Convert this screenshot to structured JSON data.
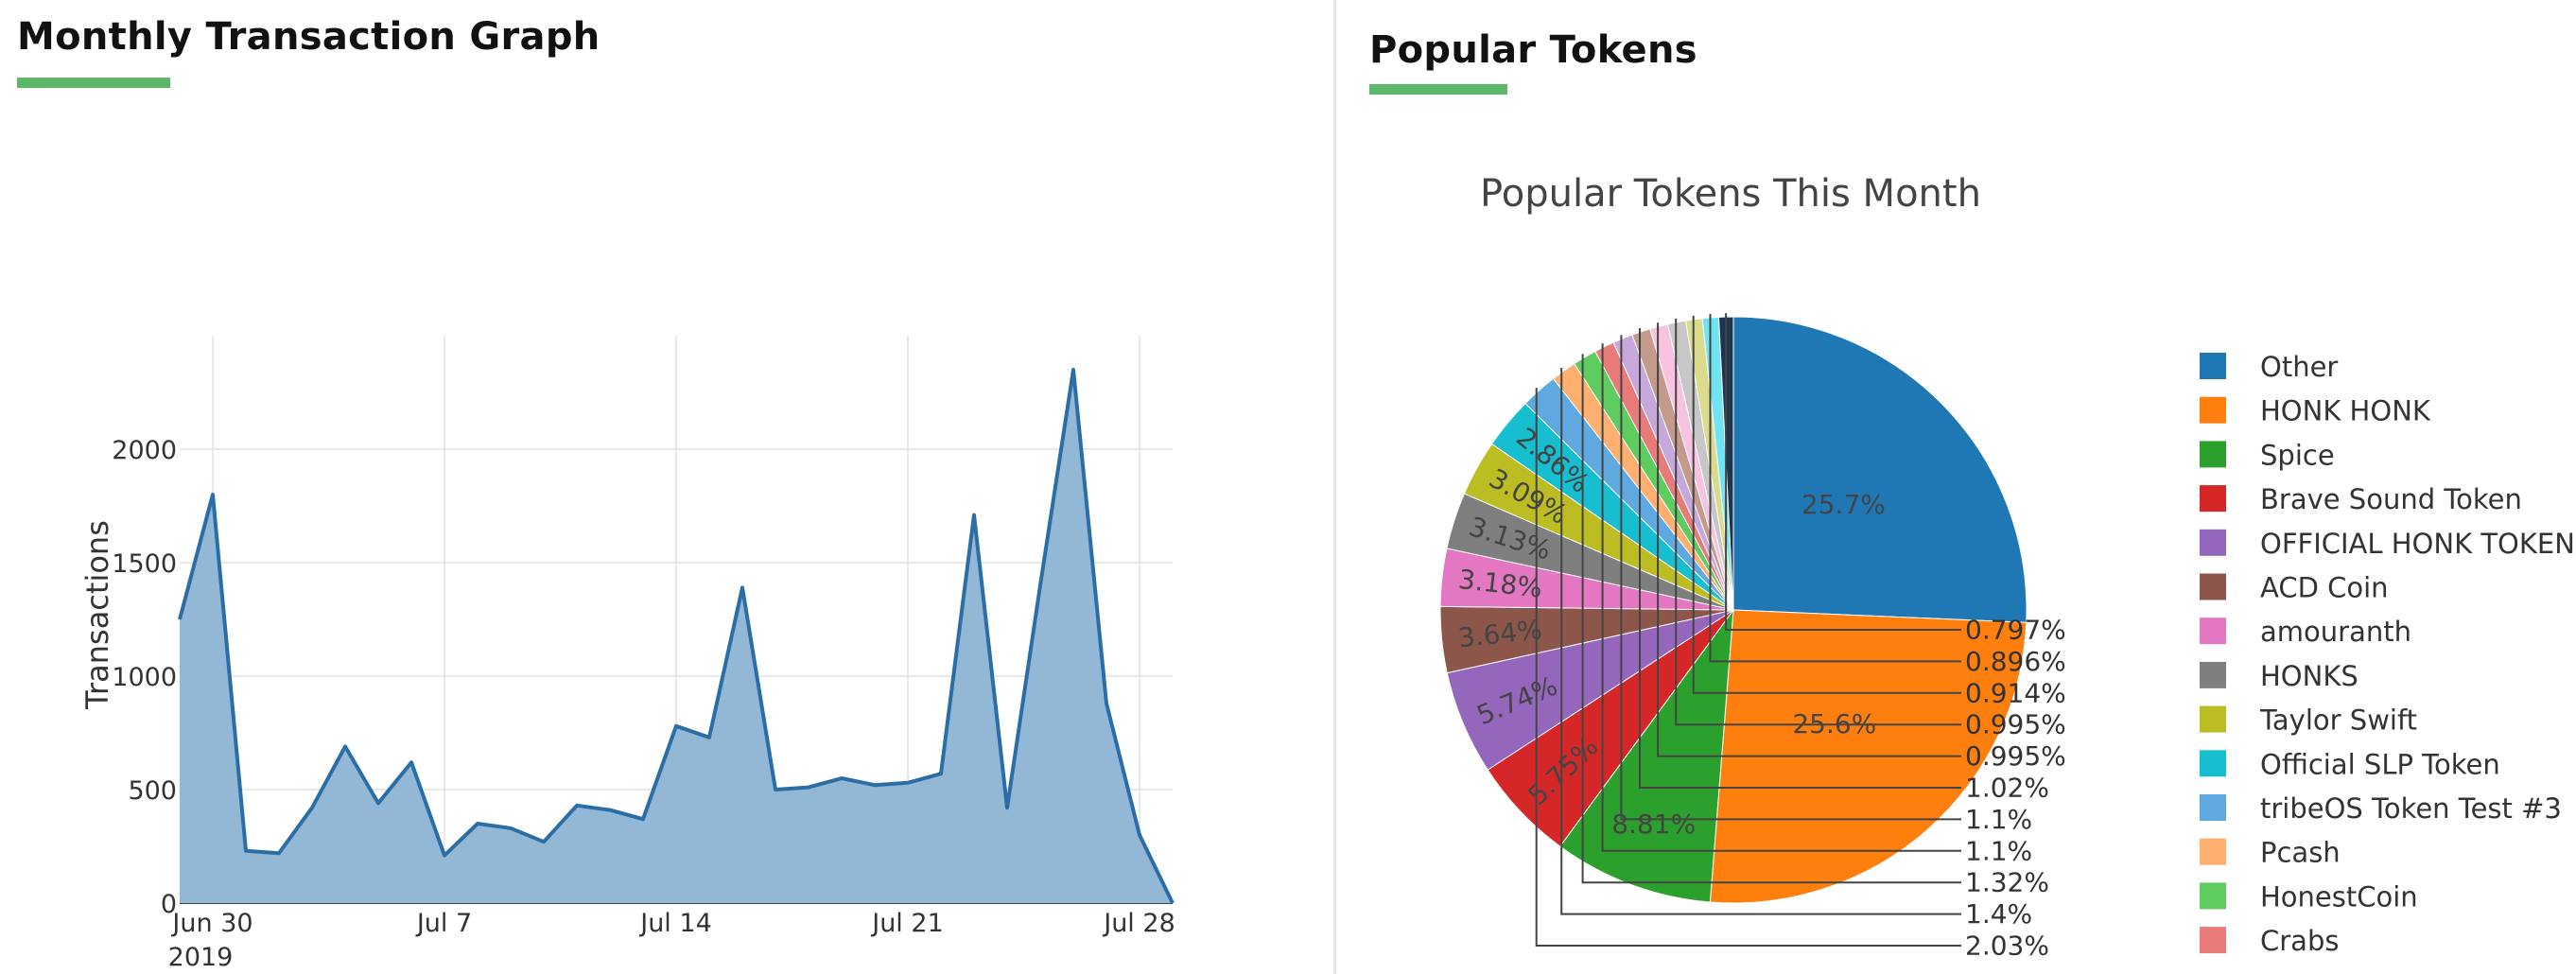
{
  "left_panel": {
    "title": "Monthly Transaction Graph"
  },
  "right_panel": {
    "title": "Popular Tokens"
  },
  "colors": {
    "accent_underline": "#5cb868",
    "area_line": "#2b6ea6",
    "area_fill": "#93b8d6"
  },
  "chart_data": [
    {
      "type": "area",
      "title": "",
      "xlabel": "",
      "ylabel": "Transactions",
      "x_start": "2019-06-29",
      "x_ticks": [
        "Jun 30",
        "Jul 7",
        "Jul 14",
        "Jul 21",
        "Jul 28"
      ],
      "x_tick_sublabel": "2019",
      "x_range": [
        "2019-06-29",
        "2019-07-29"
      ],
      "y_ticks": [
        0,
        500,
        1000,
        1500,
        2000
      ],
      "ylim": [
        0,
        2500
      ],
      "grid": true,
      "series": [
        {
          "dates": [
            "2019-06-29",
            "2019-06-30",
            "2019-07-01",
            "2019-07-02",
            "2019-07-03",
            "2019-07-04",
            "2019-07-05",
            "2019-07-06",
            "2019-07-07",
            "2019-07-08",
            "2019-07-09",
            "2019-07-10",
            "2019-07-11",
            "2019-07-12",
            "2019-07-13",
            "2019-07-14",
            "2019-07-15",
            "2019-07-16",
            "2019-07-17",
            "2019-07-18",
            "2019-07-19",
            "2019-07-20",
            "2019-07-21",
            "2019-07-22",
            "2019-07-23",
            "2019-07-24",
            "2019-07-25",
            "2019-07-26",
            "2019-07-27",
            "2019-07-28",
            "2019-07-29"
          ],
          "values": [
            1250,
            1800,
            230,
            220,
            420,
            690,
            440,
            620,
            210,
            350,
            330,
            270,
            430,
            410,
            370,
            780,
            730,
            1390,
            500,
            510,
            550,
            520,
            530,
            570,
            1710,
            420,
            1400,
            2350,
            880,
            300,
            0
          ]
        }
      ]
    },
    {
      "type": "pie",
      "title": "Popular Tokens This Month",
      "legend_position": "right",
      "slices": [
        {
          "label": "Other",
          "value": 25.7,
          "display": "25.7%",
          "color": "#1f77b4"
        },
        {
          "label": "HONK HONK",
          "value": 25.6,
          "display": "25.6%",
          "color": "#ff7f0e"
        },
        {
          "label": "Spice",
          "value": 8.81,
          "display": "8.81%",
          "color": "#2ca02c"
        },
        {
          "label": "Brave Sound Token",
          "value": 5.75,
          "display": "5.75%",
          "color": "#d62728"
        },
        {
          "label": "OFFICIAL HONK TOKEN",
          "value": 5.74,
          "display": "5.74%",
          "color": "#9467bd"
        },
        {
          "label": "ACD Coin",
          "value": 3.64,
          "display": "3.64%",
          "color": "#8c564b"
        },
        {
          "label": "amouranth",
          "value": 3.18,
          "display": "3.18%",
          "color": "#e377c2"
        },
        {
          "label": "HONKS",
          "value": 3.13,
          "display": "3.13%",
          "color": "#7f7f7f"
        },
        {
          "label": "Taylor Swift",
          "value": 3.09,
          "display": "3.09%",
          "color": "#bcbd22"
        },
        {
          "label": "Official SLP Token",
          "value": 2.86,
          "display": "2.86%",
          "color": "#17becf"
        },
        {
          "label": "tribeOS Token Test #3",
          "value": 2.03,
          "display": "2.03%",
          "color": "#5fa8e0"
        },
        {
          "label": "Pcash",
          "value": 1.4,
          "display": "1.4%",
          "color": "#ffb070"
        },
        {
          "label": "HonestCoin",
          "value": 1.32,
          "display": "1.32%",
          "color": "#5ecc5e"
        },
        {
          "label": "Crabs",
          "value": 1.1,
          "display": "1.1%",
          "color": "#e87a7a"
        },
        {
          "label": "",
          "value": 1.1,
          "display": "1.1%",
          "color": "#c7a8dc"
        },
        {
          "label": "",
          "value": 1.02,
          "display": "1.02%",
          "color": "#c49a8c"
        },
        {
          "label": "",
          "value": 0.995,
          "display": "0.995%",
          "color": "#f7c3e0"
        },
        {
          "label": "",
          "value": 0.995,
          "display": "0.995%",
          "color": "#c7c7c7"
        },
        {
          "label": "",
          "value": 0.914,
          "display": "0.914%",
          "color": "#dbdb8d"
        },
        {
          "label": "",
          "value": 0.896,
          "display": "0.896%",
          "color": "#70e4f0"
        },
        {
          "label": "",
          "value": 0.797,
          "display": "0.797%",
          "color": "#1d3550"
        }
      ]
    }
  ]
}
